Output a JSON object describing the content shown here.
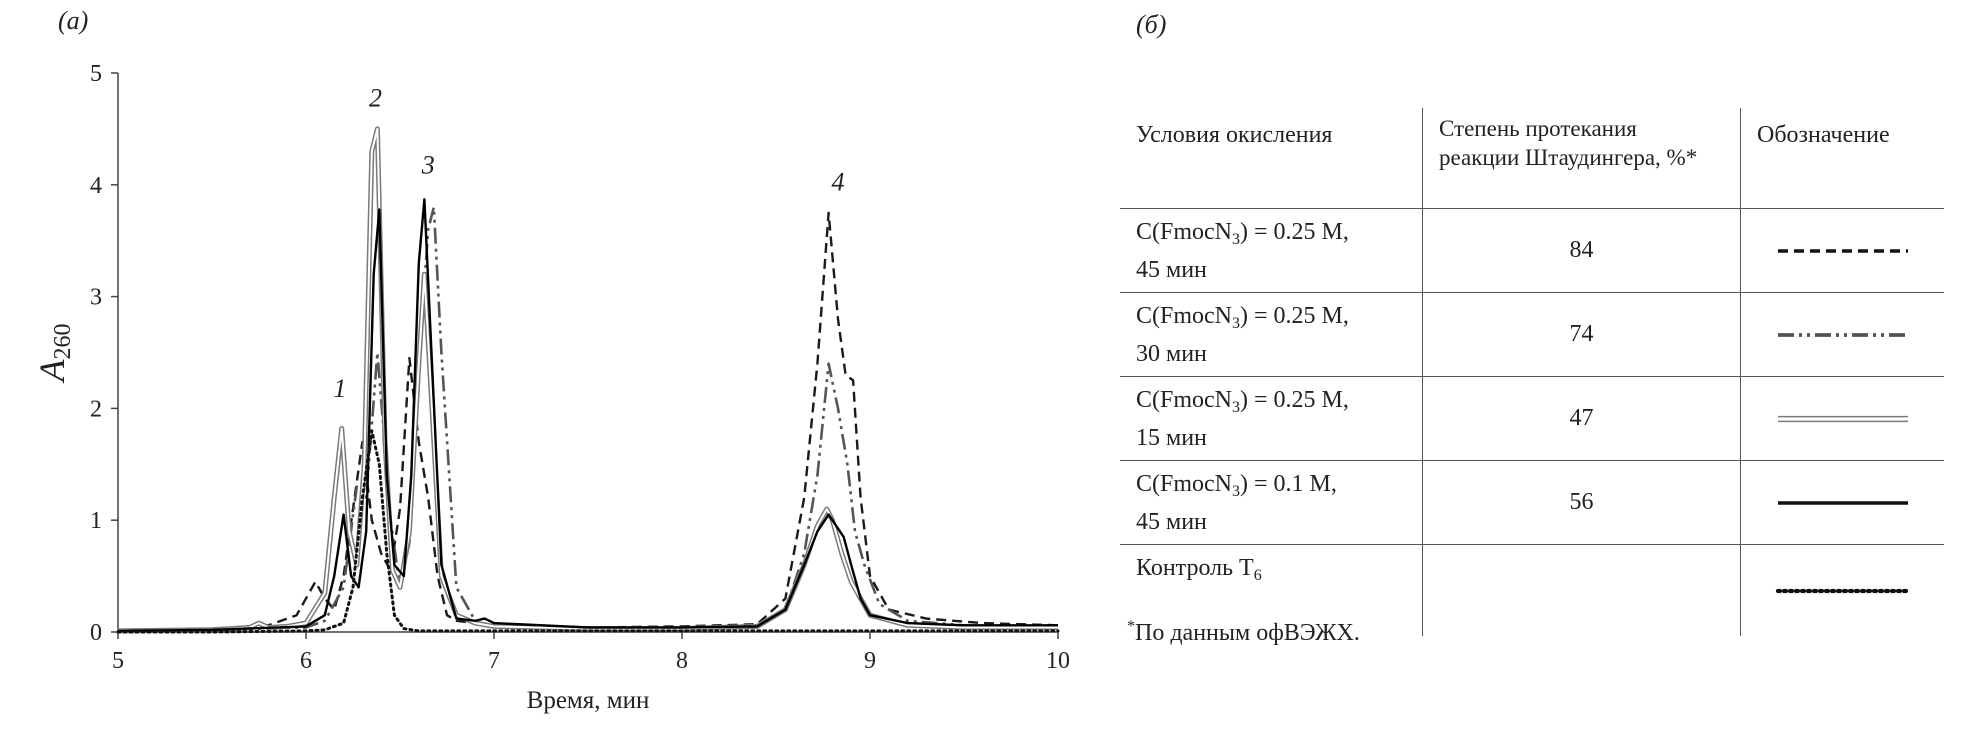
{
  "panel_a_label": "(а)",
  "panel_b_label": "(б)",
  "chart_data": {
    "type": "line",
    "xlabel": "Время, мин",
    "ylabel": "A",
    "ylabel_sub": "260",
    "xlim": [
      5,
      10
    ],
    "ylim": [
      0,
      5
    ],
    "xticks": [
      5,
      6,
      7,
      8,
      9,
      10
    ],
    "yticks": [
      0,
      1,
      2,
      3,
      4,
      5
    ],
    "grid": false,
    "peak_labels": [
      {
        "text": "1",
        "x": 6.18,
        "y": 2.1
      },
      {
        "text": "2",
        "x": 6.37,
        "y": 4.7
      },
      {
        "text": "3",
        "x": 6.65,
        "y": 4.1
      },
      {
        "text": "4",
        "x": 8.83,
        "y": 3.95
      }
    ],
    "series": [
      {
        "style": "dashed",
        "color": "#1a1a1a",
        "x": [
          5.0,
          5.5,
          5.8,
          5.95,
          6.05,
          6.1,
          6.15,
          6.2,
          6.25,
          6.3,
          6.35,
          6.4,
          6.45,
          6.5,
          6.55,
          6.6,
          6.65,
          6.7,
          6.75,
          6.8,
          6.9,
          7.0,
          7.5,
          8.0,
          8.4,
          8.55,
          8.65,
          8.72,
          8.78,
          8.83,
          8.87,
          8.91,
          8.95,
          9.0,
          9.1,
          9.3,
          9.6,
          10.0
        ],
        "y": [
          0.01,
          0.03,
          0.06,
          0.15,
          0.45,
          0.3,
          0.2,
          0.5,
          1.1,
          1.7,
          1.0,
          0.7,
          0.55,
          1.1,
          2.45,
          1.7,
          1.2,
          0.5,
          0.15,
          0.1,
          0.08,
          0.05,
          0.04,
          0.05,
          0.07,
          0.3,
          1.2,
          2.4,
          3.75,
          2.8,
          2.3,
          2.25,
          1.2,
          0.5,
          0.2,
          0.12,
          0.08,
          0.06
        ]
      },
      {
        "style": "dash-dot-dot",
        "color": "#555555",
        "x": [
          5.0,
          5.5,
          6.0,
          6.1,
          6.2,
          6.27,
          6.32,
          6.38,
          6.45,
          6.5,
          6.55,
          6.6,
          6.65,
          6.68,
          6.72,
          6.8,
          6.9,
          7.0,
          7.5,
          8.0,
          8.4,
          8.55,
          8.65,
          8.72,
          8.78,
          8.83,
          8.88,
          8.92,
          8.97,
          9.05,
          9.2,
          9.5,
          10.0
        ],
        "y": [
          0.01,
          0.02,
          0.04,
          0.1,
          0.4,
          1.3,
          1.2,
          2.5,
          1.0,
          0.4,
          0.8,
          2.4,
          3.6,
          3.8,
          2.5,
          0.4,
          0.1,
          0.05,
          0.03,
          0.04,
          0.06,
          0.2,
          0.7,
          1.4,
          2.4,
          2.0,
          1.5,
          0.9,
          0.6,
          0.25,
          0.1,
          0.06,
          0.04
        ]
      },
      {
        "style": "double-gray",
        "color": "#7a7a7a",
        "x": [
          5.0,
          5.5,
          5.7,
          5.75,
          5.8,
          5.9,
          6.0,
          6.1,
          6.15,
          6.19,
          6.23,
          6.27,
          6.31,
          6.35,
          6.38,
          6.42,
          6.46,
          6.5,
          6.55,
          6.6,
          6.63,
          6.67,
          6.72,
          6.8,
          6.9,
          7.0,
          7.5,
          8.0,
          8.4,
          8.55,
          8.65,
          8.72,
          8.77,
          8.8,
          8.85,
          8.9,
          9.0,
          9.2,
          9.5,
          10.0
        ],
        "y": [
          0.01,
          0.02,
          0.04,
          0.08,
          0.04,
          0.05,
          0.08,
          0.35,
          1.2,
          1.82,
          0.9,
          0.6,
          1.5,
          4.3,
          4.5,
          1.7,
          0.55,
          0.4,
          0.9,
          2.4,
          3.2,
          2.0,
          0.5,
          0.15,
          0.08,
          0.05,
          0.03,
          0.03,
          0.05,
          0.2,
          0.6,
          0.95,
          1.1,
          1.0,
          0.7,
          0.45,
          0.15,
          0.06,
          0.04,
          0.04
        ]
      },
      {
        "style": "solid",
        "color": "#000000",
        "x": [
          5.0,
          5.5,
          6.0,
          6.1,
          6.15,
          6.2,
          6.24,
          6.28,
          6.32,
          6.36,
          6.39,
          6.43,
          6.47,
          6.52,
          6.56,
          6.6,
          6.63,
          6.67,
          6.72,
          6.8,
          6.9,
          6.95,
          7.0,
          7.5,
          8.0,
          8.4,
          8.55,
          8.65,
          8.72,
          8.78,
          8.82,
          8.86,
          8.9,
          8.95,
          9.0,
          9.2,
          9.5,
          10.0
        ],
        "y": [
          0.01,
          0.02,
          0.05,
          0.15,
          0.5,
          1.05,
          0.5,
          0.4,
          0.9,
          3.2,
          3.78,
          1.4,
          0.6,
          0.5,
          1.4,
          3.3,
          3.87,
          2.4,
          0.6,
          0.12,
          0.1,
          0.12,
          0.08,
          0.04,
          0.04,
          0.05,
          0.2,
          0.6,
          0.9,
          1.05,
          0.95,
          0.85,
          0.6,
          0.3,
          0.15,
          0.08,
          0.06,
          0.06
        ]
      },
      {
        "style": "dotted",
        "color": "#111111",
        "x": [
          5.0,
          5.5,
          6.0,
          6.1,
          6.2,
          6.25,
          6.3,
          6.35,
          6.39,
          6.43,
          6.47,
          6.52,
          6.6,
          6.7,
          7.0,
          8.0,
          9.0,
          10.0
        ],
        "y": [
          0.0,
          0.0,
          0.01,
          0.02,
          0.08,
          0.4,
          1.2,
          1.8,
          1.5,
          0.7,
          0.15,
          0.03,
          0.01,
          0.01,
          0.01,
          0.01,
          0.01,
          0.01
        ]
      }
    ]
  },
  "table": {
    "headers": {
      "conditions": "Условия окисления",
      "degree_line1": "Степень протекания",
      "degree_line2": "реакции Штаудингера, %*",
      "designation": "Обозначение"
    },
    "rows": [
      {
        "cond_prefix": "C(FmocN",
        "cond_sub": "3",
        "cond_suffix": ") = 0.25 M,",
        "cond_line2": "45 мин",
        "value": "84",
        "line_style": "dashed"
      },
      {
        "cond_prefix": "C(FmocN",
        "cond_sub": "3",
        "cond_suffix": ") = 0.25 M,",
        "cond_line2": "30 мин",
        "value": "74",
        "line_style": "dash-dot-dot"
      },
      {
        "cond_prefix": "C(FmocN",
        "cond_sub": "3",
        "cond_suffix": ") = 0.25 M,",
        "cond_line2": "15 мин",
        "value": "47",
        "line_style": "double-gray"
      },
      {
        "cond_prefix": "C(FmocN",
        "cond_sub": "3",
        "cond_suffix": ") = 0.1 M,",
        "cond_line2": "45 мин",
        "value": "56",
        "line_style": "solid"
      },
      {
        "cond_prefix": "Контроль T",
        "cond_sub": "6",
        "cond_suffix": "",
        "cond_line2": "",
        "value": "",
        "line_style": "dotted"
      }
    ]
  },
  "footnote": {
    "mark": "*",
    "text": "По данным  офВЭЖХ."
  }
}
